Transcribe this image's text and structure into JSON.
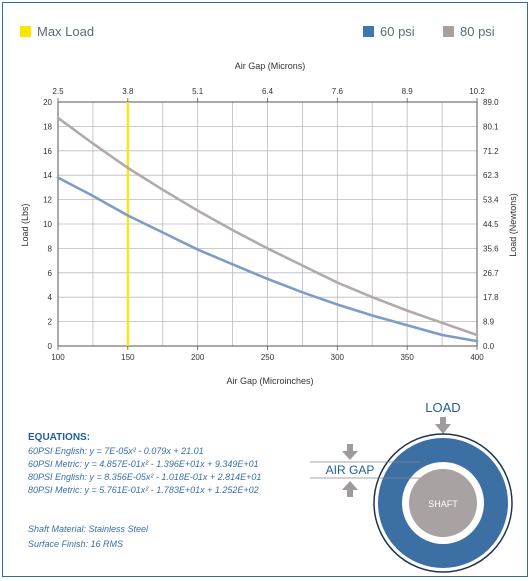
{
  "legend": {
    "max_load": {
      "label": "Max Load",
      "color": "#ffe500"
    },
    "psi60": {
      "label": "60 psi",
      "color": "#3c77b0"
    },
    "psi80": {
      "label": "80 psi",
      "color": "#a89f9f"
    }
  },
  "chart_data": {
    "type": "line",
    "xlabel": "Air Gap (Microinches)",
    "x2label": "Air Gap (Microns)",
    "ylabel": "Load (Lbs)",
    "y2label": "Load (Newtons)",
    "xlim": [
      100,
      400
    ],
    "ylim": [
      0,
      20
    ],
    "x_ticks": [
      "100",
      "150",
      "200",
      "250",
      "300",
      "350",
      "400"
    ],
    "x2_ticks": [
      "2.5",
      "3.8",
      "5.1",
      "6.4",
      "7.6",
      "8.9",
      "10.2"
    ],
    "y_ticks": [
      "0",
      "2",
      "4",
      "6",
      "8",
      "10",
      "12",
      "14",
      "16",
      "18",
      "20"
    ],
    "y2_ticks": [
      "0.0",
      "8.9",
      "17.8",
      "26.7",
      "35.6",
      "44.5",
      "53.4",
      "62.3",
      "71.2",
      "80.1",
      "89.0"
    ],
    "grid": true,
    "max_load_x": 150,
    "x": [
      100,
      125,
      150,
      175,
      200,
      225,
      250,
      275,
      300,
      325,
      350,
      375,
      400
    ],
    "series": [
      {
        "name": "60 psi",
        "color": "#7d9cc8",
        "values": [
          13.8,
          12.3,
          10.7,
          9.3,
          7.9,
          6.7,
          5.5,
          4.4,
          3.4,
          2.5,
          1.7,
          0.9,
          0.4
        ]
      },
      {
        "name": "80 psi",
        "color": "#b3a9a9",
        "values": [
          18.7,
          16.6,
          14.6,
          12.8,
          11.1,
          9.5,
          8.0,
          6.6,
          5.2,
          4.0,
          2.9,
          1.9,
          0.9
        ]
      }
    ]
  },
  "equations": {
    "title": "EQUATIONS:",
    "lines": [
      "60PSI English:  y = 7E-05x² - 0.079x + 21.01",
      "60PSI Metric:  y = 4.857E-01x² - 1.396E+01x + 9.349E+01",
      "80PSI English:  y = 8.356E-05x² - 1.018E-01x + 2.814E+01",
      "80PSI Metric:  y = 5.761E-01x² - 1.783E+01x + 1.252E+02"
    ]
  },
  "specs": {
    "material": "Shaft Material:  Stainless Steel",
    "finish": "Surface Finish:  16 RMS"
  },
  "diagram": {
    "load_label": "LOAD",
    "air_gap_label": "AIR GAP",
    "shaft_label": "SHAFT",
    "ring_color": "#3c6fa3",
    "arrow_color": "#a19a9a"
  }
}
